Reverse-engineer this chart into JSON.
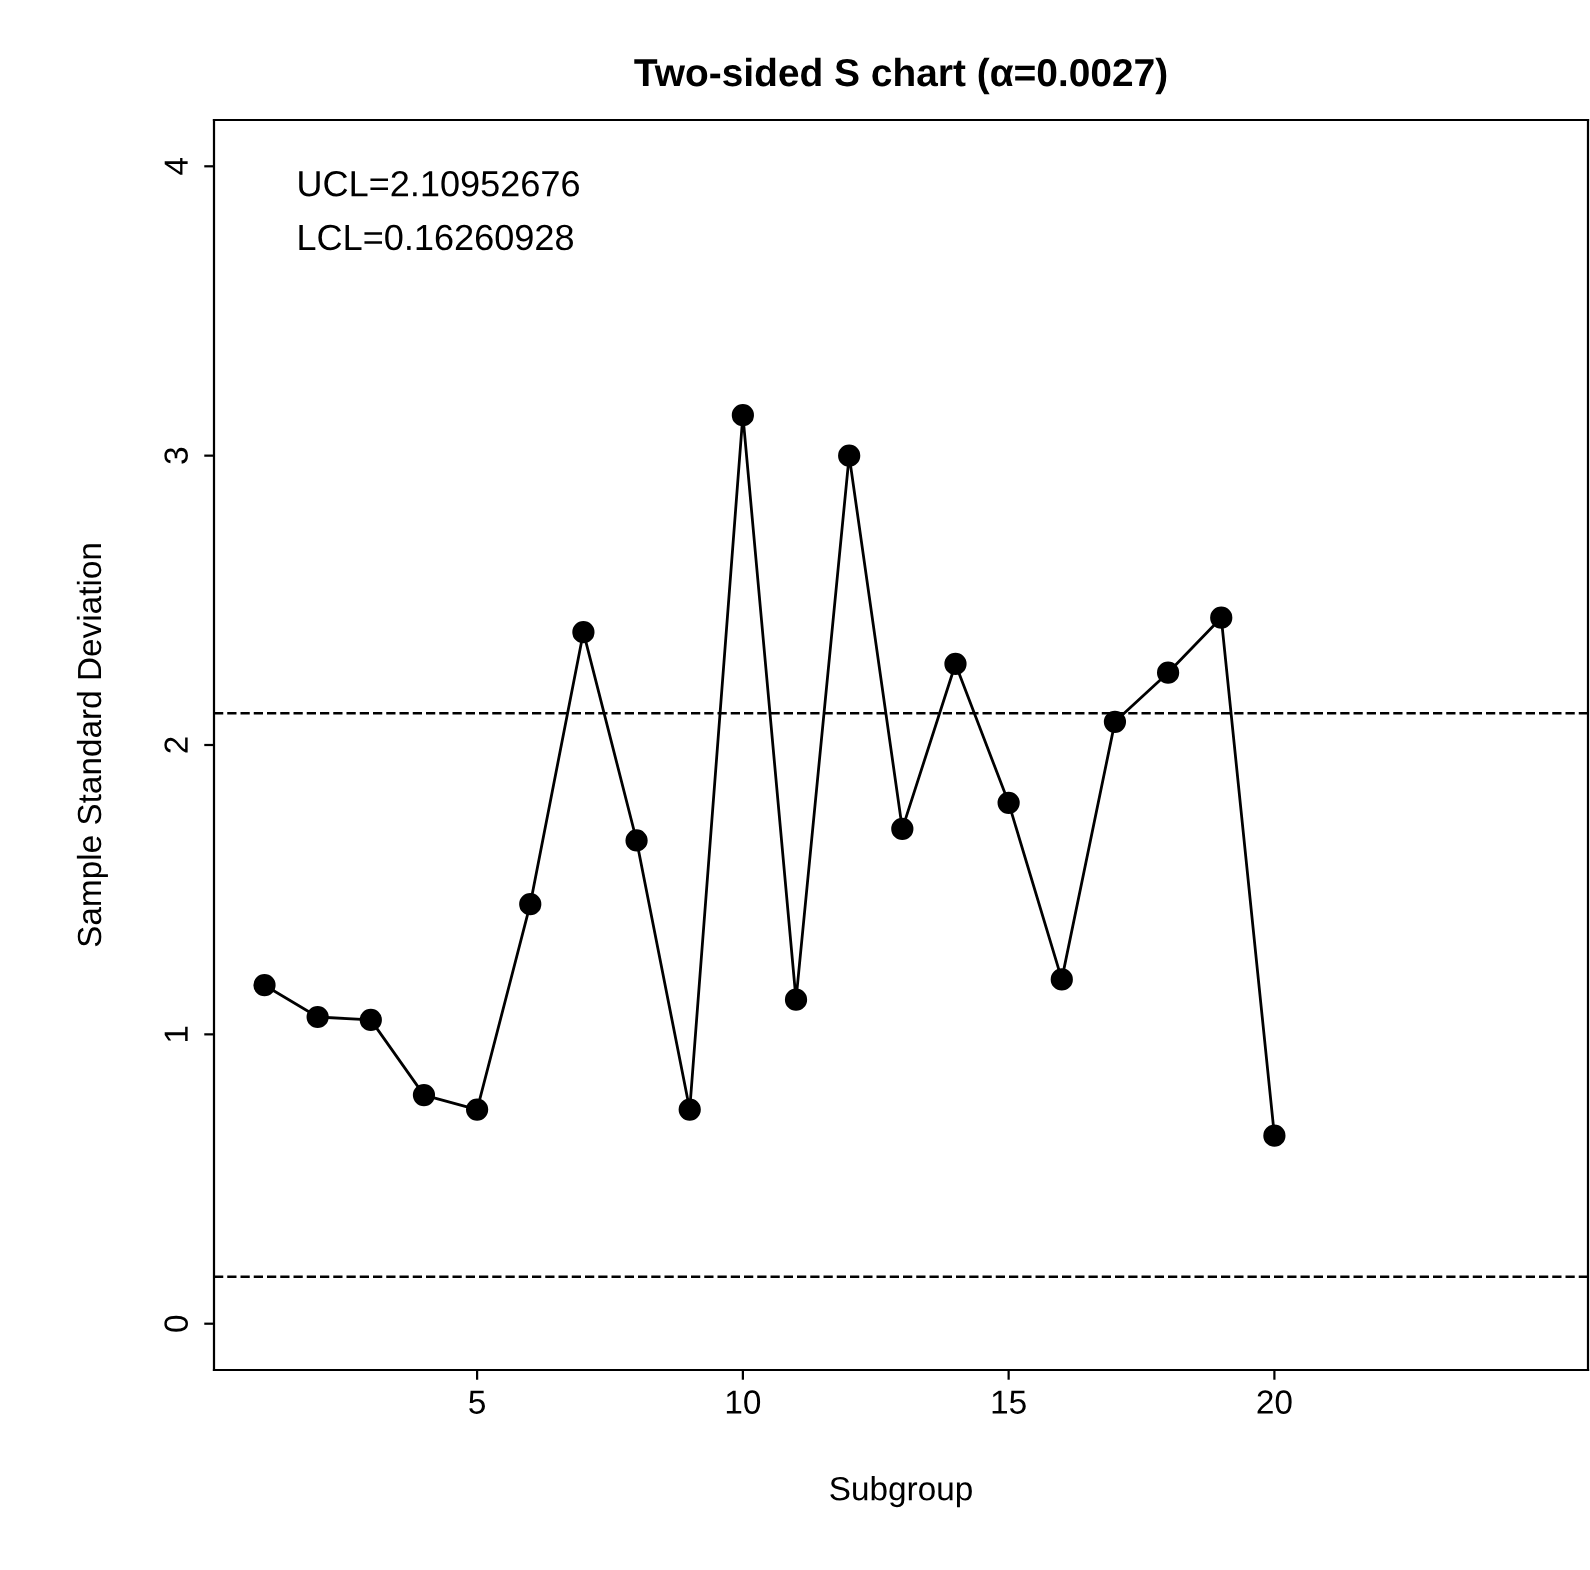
{
  "chart_data": {
    "type": "line",
    "title": "Two-sided S chart (α=0.0027)",
    "xlabel": "Subgroup",
    "ylabel": "Sample Standard Deviation",
    "x": [
      1,
      2,
      3,
      4,
      5,
      6,
      7,
      8,
      9,
      10,
      11,
      12,
      13,
      14,
      15,
      16,
      17,
      18,
      19,
      20
    ],
    "series": [
      {
        "color": "#000000",
        "values": [
          1.17,
          1.06,
          1.05,
          0.79,
          0.74,
          1.45,
          2.39,
          1.67,
          0.74,
          3.14,
          1.12,
          3.0,
          1.71,
          2.28,
          1.8,
          1.19,
          2.08,
          2.25,
          2.44,
          0.65
        ]
      }
    ],
    "marker": "circle",
    "line_style": "solid",
    "grid": false,
    "xlim": [
      0.05,
      25.9
    ],
    "xticks": [
      5,
      10,
      15,
      20
    ],
    "ylim": [
      -0.16,
      4.16
    ],
    "yticks": [
      0,
      1,
      2,
      3,
      4
    ],
    "ref_lines": [
      {
        "axis": "y",
        "value": 2.10952676,
        "line_style": "dashed",
        "color": "#000000"
      },
      {
        "axis": "y",
        "value": 0.16260928,
        "line_style": "dashed",
        "color": "#000000"
      }
    ],
    "annotations": [
      "UCL=2.10952676",
      "LCL=0.16260928"
    ]
  }
}
